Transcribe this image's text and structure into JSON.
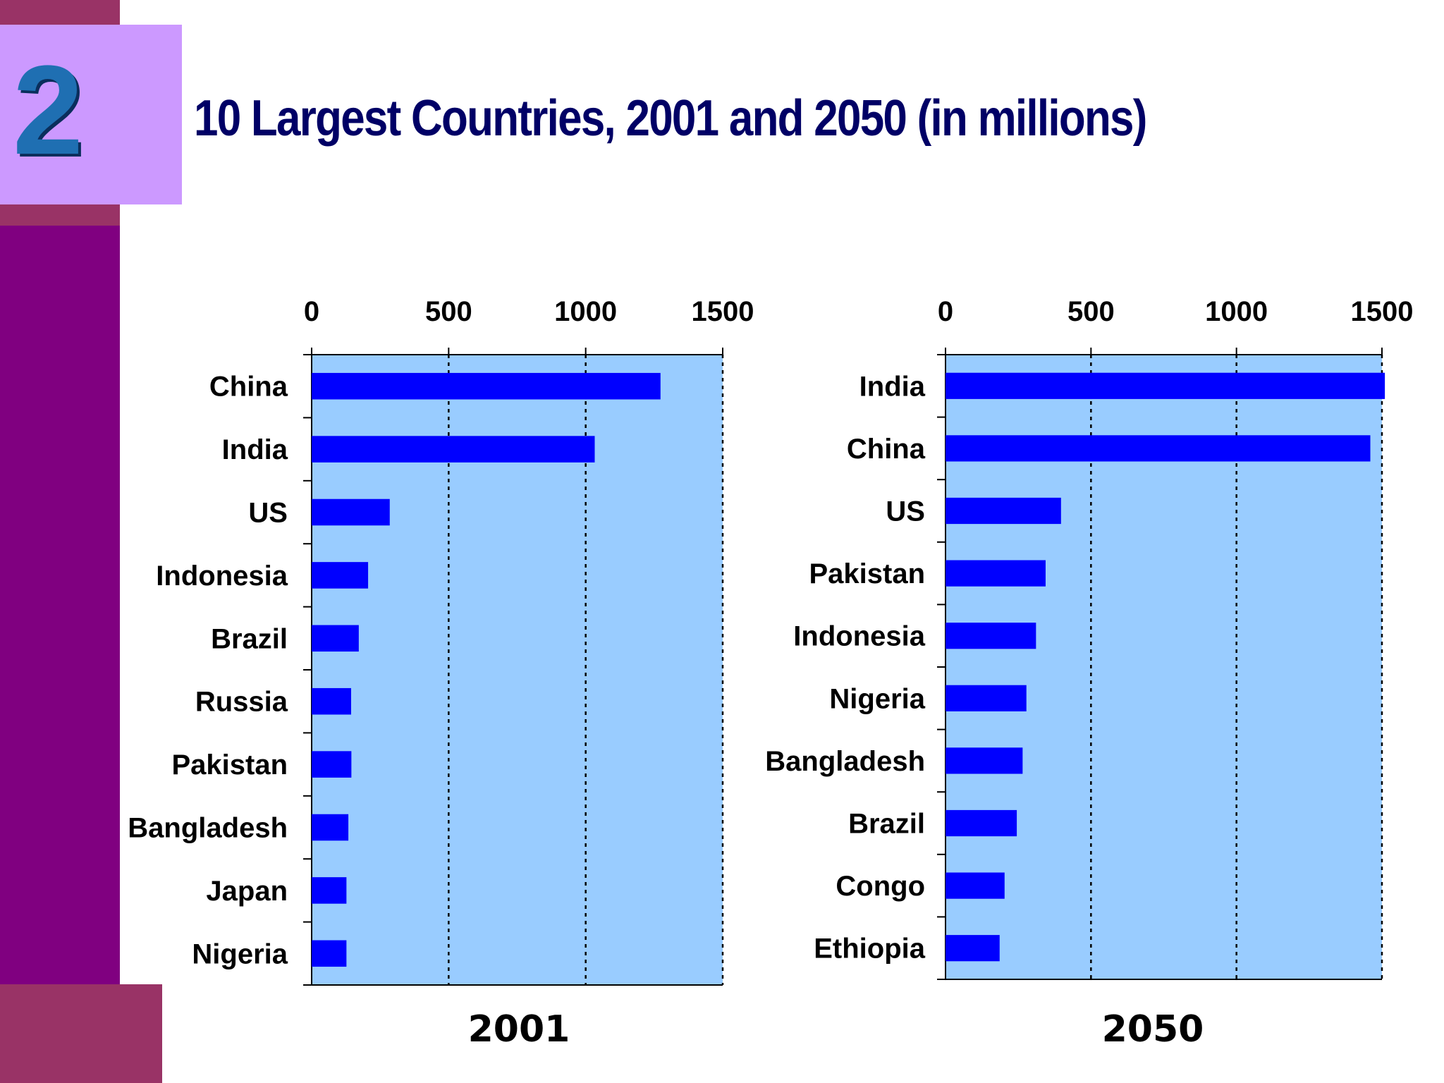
{
  "slide": {
    "number": "2",
    "title": "10 Largest Countries, 2001 and 2050 (in millions)"
  },
  "colors": {
    "left_bar": "#800080",
    "bands": "#993366",
    "number_box": "#cc99ff",
    "title": "#000066",
    "plot_background": "#99ccff",
    "bars": "#0000ff"
  },
  "chart_data": [
    {
      "type": "bar",
      "orientation": "horizontal",
      "title": "2001",
      "categories": [
        "China",
        "India",
        "US",
        "Indonesia",
        "Brazil",
        "Russia",
        "Pakistan",
        "Bangladesh",
        "Japan",
        "Nigeria"
      ],
      "values": [
        1273,
        1033,
        285,
        206,
        172,
        144,
        145,
        134,
        127,
        127
      ],
      "xlim": [
        0,
        1500
      ],
      "xticks": [
        "0",
        "500",
        "1000",
        "1500"
      ],
      "x_axis_position": "top",
      "grid": "vertical dotted"
    },
    {
      "type": "bar",
      "orientation": "horizontal",
      "title": "2050",
      "categories": [
        "India",
        "China",
        "US",
        "Pakistan",
        "Indonesia",
        "Nigeria",
        "Bangladesh",
        "Brazil",
        "Congo",
        "Ethiopia"
      ],
      "values": [
        1510,
        1460,
        397,
        344,
        311,
        278,
        265,
        245,
        203,
        186
      ],
      "xlim": [
        0,
        1500
      ],
      "xticks": [
        "0",
        "500",
        "1000",
        "1500"
      ],
      "x_axis_position": "top",
      "grid": "vertical dotted"
    }
  ]
}
